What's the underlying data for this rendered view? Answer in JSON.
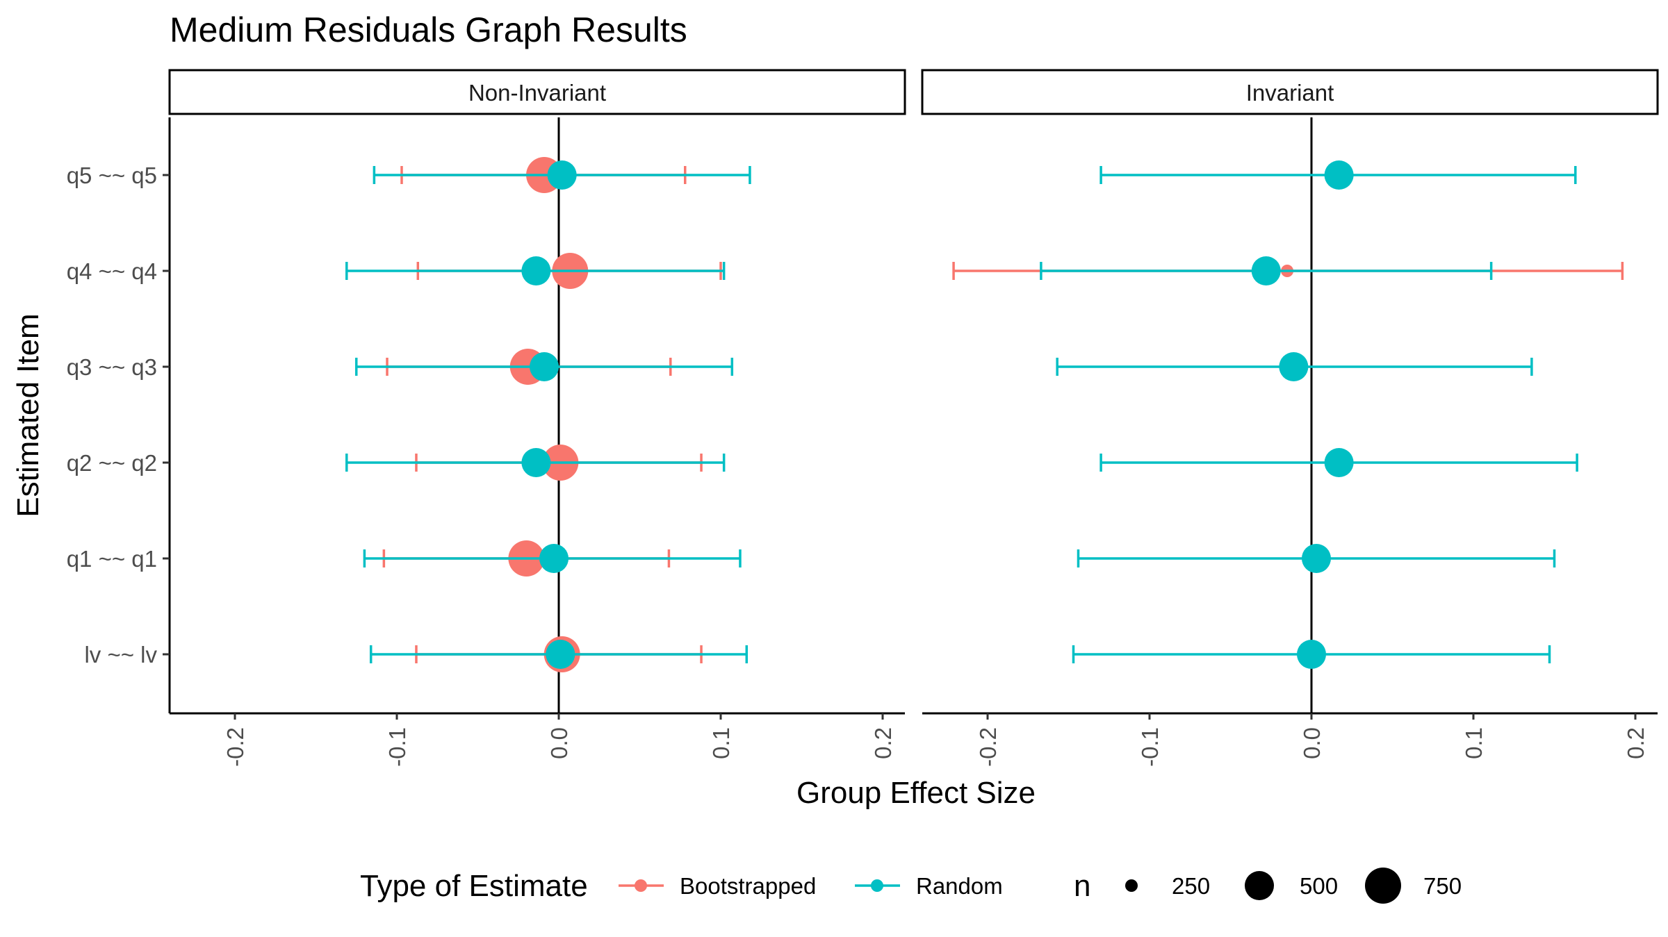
{
  "chart_data": {
    "type": "scatter",
    "title": "Medium Residuals Graph Results",
    "xlabel": "Group Effect Size",
    "ylabel": "Estimated Item",
    "xlim": [
      -0.24,
      0.21
    ],
    "x_ticks": [
      "-0.2",
      "-0.1",
      "0.0",
      "0.1",
      "0.2"
    ],
    "x_tick_values": [
      -0.2,
      -0.1,
      0.0,
      0.1,
      0.2
    ],
    "categories": [
      "lv ~~ lv",
      "q1 ~~ q1",
      "q2 ~~ q2",
      "q3 ~~ q3",
      "q4 ~~ q4",
      "q5 ~~ q5"
    ],
    "reference_line_x": 0,
    "grid": false,
    "colors": {
      "Bootstrapped": "#F8766D",
      "Random": "#00BFC4"
    },
    "panels": [
      {
        "label": "Non-Invariant",
        "series": [
          {
            "name": "Bootstrapped",
            "points": [
              {
                "item": "lv ~~ lv",
                "estimate": 0.002,
                "lower": -0.088,
                "upper": 0.088,
                "n": 750
              },
              {
                "item": "q1 ~~ q1",
                "estimate": -0.02,
                "lower": -0.108,
                "upper": 0.068,
                "n": 750
              },
              {
                "item": "q2 ~~ q2",
                "estimate": 0.001,
                "lower": -0.088,
                "upper": 0.088,
                "n": 750
              },
              {
                "item": "q3 ~~ q3",
                "estimate": -0.019,
                "lower": -0.106,
                "upper": 0.069,
                "n": 750
              },
              {
                "item": "q4 ~~ q4",
                "estimate": 0.007,
                "lower": -0.087,
                "upper": 0.1,
                "n": 750
              },
              {
                "item": "q5 ~~ q5",
                "estimate": -0.009,
                "lower": -0.097,
                "upper": 0.078,
                "n": 750
              }
            ]
          },
          {
            "name": "Random",
            "points": [
              {
                "item": "lv ~~ lv",
                "estimate": 0.001,
                "lower": -0.116,
                "upper": 0.116,
                "n": 500
              },
              {
                "item": "q1 ~~ q1",
                "estimate": -0.003,
                "lower": -0.12,
                "upper": 0.112,
                "n": 500
              },
              {
                "item": "q2 ~~ q2",
                "estimate": -0.014,
                "lower": -0.131,
                "upper": 0.102,
                "n": 500
              },
              {
                "item": "q3 ~~ q3",
                "estimate": -0.009,
                "lower": -0.125,
                "upper": 0.107,
                "n": 500
              },
              {
                "item": "q4 ~~ q4",
                "estimate": -0.014,
                "lower": -0.131,
                "upper": 0.102,
                "n": 500
              },
              {
                "item": "q5 ~~ q5",
                "estimate": 0.002,
                "lower": -0.114,
                "upper": 0.118,
                "n": 500
              }
            ]
          }
        ]
      },
      {
        "label": "Invariant",
        "series": [
          {
            "name": "Bootstrapped",
            "points": [
              {
                "item": "q4 ~~ q4",
                "estimate": -0.015,
                "lower": -0.221,
                "upper": 0.192,
                "n": 250
              }
            ]
          },
          {
            "name": "Random",
            "points": [
              {
                "item": "lv ~~ lv",
                "estimate": 0.0,
                "lower": -0.147,
                "upper": 0.147,
                "n": 500
              },
              {
                "item": "q1 ~~ q1",
                "estimate": 0.003,
                "lower": -0.144,
                "upper": 0.15,
                "n": 500
              },
              {
                "item": "q2 ~~ q2",
                "estimate": 0.017,
                "lower": -0.13,
                "upper": 0.164,
                "n": 500
              },
              {
                "item": "q3 ~~ q3",
                "estimate": -0.011,
                "lower": -0.157,
                "upper": 0.136,
                "n": 500
              },
              {
                "item": "q4 ~~ q4",
                "estimate": -0.028,
                "lower": -0.167,
                "upper": 0.111,
                "n": 500
              },
              {
                "item": "q5 ~~ q5",
                "estimate": 0.017,
                "lower": -0.13,
                "upper": 0.163,
                "n": 500
              }
            ]
          }
        ]
      }
    ],
    "legend": {
      "placement": "bottom",
      "color_title": "Type of Estimate",
      "color_entries": [
        "Bootstrapped",
        "Random"
      ],
      "size_title": "n",
      "size_entries": [
        "250",
        "500",
        "750"
      ],
      "size_values": [
        250,
        500,
        750
      ]
    }
  }
}
